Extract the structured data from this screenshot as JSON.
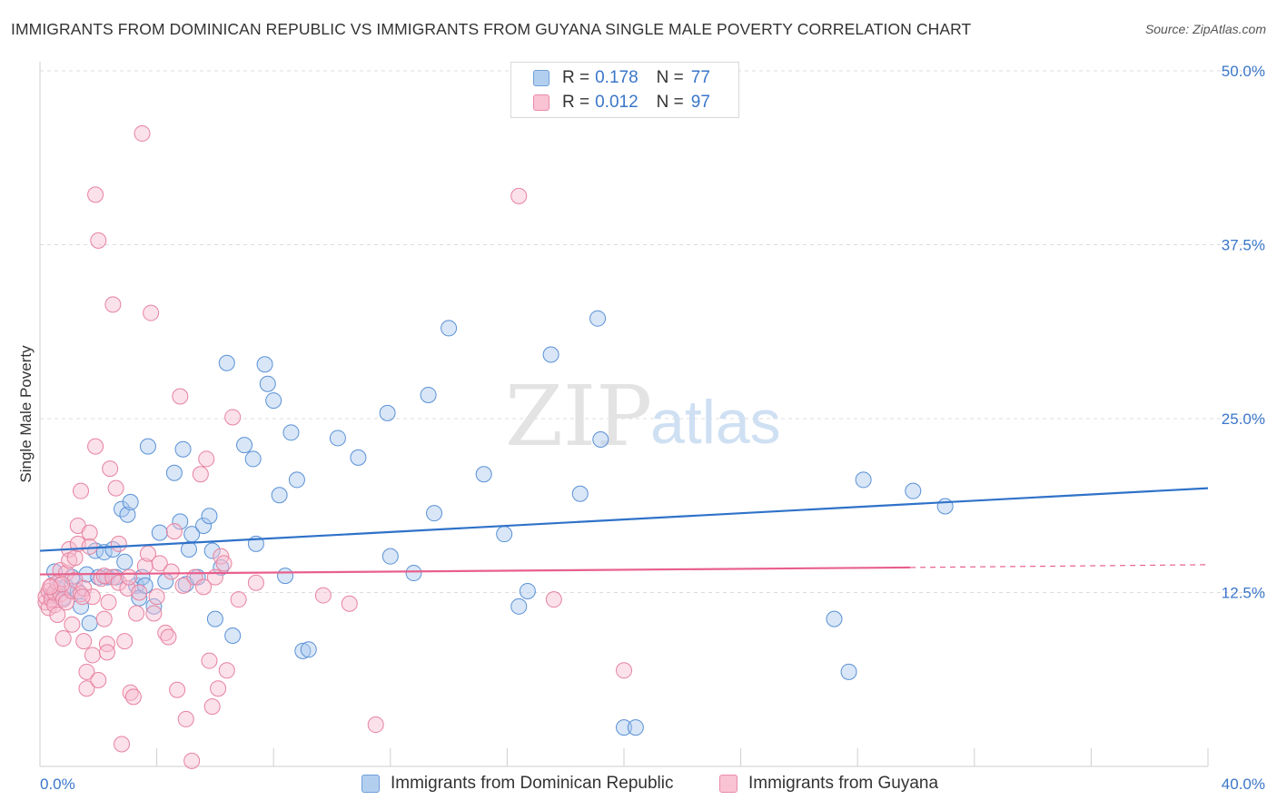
{
  "title": "IMMIGRANTS FROM DOMINICAN REPUBLIC VS IMMIGRANTS FROM GUYANA SINGLE MALE POVERTY CORRELATION CHART",
  "source": "Source: ZipAtlas.com",
  "watermark": {
    "zip": "ZIP",
    "atlas": "atlas"
  },
  "legend": {
    "series1": {
      "r_label": "R =",
      "r_value": "0.178",
      "n_label": "N =",
      "n_value": "77"
    },
    "series2": {
      "r_label": "R =",
      "r_value": "0.012",
      "n_label": "N =",
      "n_value": "97"
    }
  },
  "chart_data": {
    "type": "scatter",
    "ylabel": "Single Male Poverty",
    "xlim": [
      0,
      40
    ],
    "ylim": [
      0,
      50
    ],
    "x_tick_labels": [
      "0.0%",
      "40.0%"
    ],
    "y_tick_labels": [
      "12.5%",
      "25.0%",
      "37.5%",
      "50.0%"
    ],
    "y_ticks": [
      12.5,
      25,
      37.5,
      50
    ],
    "grid": true,
    "legend_position": "top-center",
    "colors": {
      "blue_fill": "#a8c8ee",
      "blue_stroke": "#5a91d6",
      "blue_line": "#2f72c9",
      "pink_fill": "#f7bdd0",
      "pink_stroke": "#e7829f",
      "pink_line": "#e8608c"
    },
    "series": [
      {
        "name": "Immigrants from Dominican Republic",
        "color": "blue",
        "trend": {
          "x": [
            0,
            40
          ],
          "y": [
            15.5,
            20.0
          ]
        },
        "points": [
          [
            0.4,
            12.3
          ],
          [
            0.5,
            14.0
          ],
          [
            0.6,
            12.8
          ],
          [
            0.8,
            12.1
          ],
          [
            0.9,
            12.9
          ],
          [
            1.1,
            13.6
          ],
          [
            1.3,
            12.6
          ],
          [
            1.4,
            11.5
          ],
          [
            1.6,
            13.8
          ],
          [
            1.7,
            10.3
          ],
          [
            1.9,
            15.5
          ],
          [
            2.0,
            13.6
          ],
          [
            2.2,
            15.4
          ],
          [
            2.3,
            13.6
          ],
          [
            2.5,
            15.6
          ],
          [
            2.6,
            13.6
          ],
          [
            2.8,
            18.5
          ],
          [
            2.9,
            14.7
          ],
          [
            3.0,
            18.1
          ],
          [
            3.1,
            19.0
          ],
          [
            3.3,
            13.0
          ],
          [
            3.4,
            12.1
          ],
          [
            3.5,
            13.6
          ],
          [
            3.6,
            13.0
          ],
          [
            3.7,
            23.0
          ],
          [
            3.9,
            11.5
          ],
          [
            4.1,
            16.8
          ],
          [
            4.3,
            13.3
          ],
          [
            4.6,
            21.1
          ],
          [
            4.8,
            17.6
          ],
          [
            4.9,
            22.8
          ],
          [
            5.0,
            13.1
          ],
          [
            5.1,
            15.6
          ],
          [
            5.2,
            16.7
          ],
          [
            5.4,
            13.6
          ],
          [
            5.6,
            17.3
          ],
          [
            5.8,
            18.0
          ],
          [
            5.9,
            15.5
          ],
          [
            6.0,
            10.6
          ],
          [
            6.2,
            14.3
          ],
          [
            6.4,
            29.0
          ],
          [
            6.6,
            9.4
          ],
          [
            7.0,
            23.1
          ],
          [
            7.3,
            22.1
          ],
          [
            7.4,
            16.0
          ],
          [
            7.7,
            28.9
          ],
          [
            7.8,
            27.5
          ],
          [
            8.0,
            26.3
          ],
          [
            8.2,
            19.5
          ],
          [
            8.4,
            13.7
          ],
          [
            8.6,
            24.0
          ],
          [
            8.8,
            20.6
          ],
          [
            9.0,
            8.3
          ],
          [
            9.2,
            8.4
          ],
          [
            10.2,
            23.6
          ],
          [
            10.9,
            22.2
          ],
          [
            11.9,
            25.4
          ],
          [
            12.0,
            15.1
          ],
          [
            12.8,
            13.9
          ],
          [
            13.3,
            26.7
          ],
          [
            13.5,
            18.2
          ],
          [
            14.0,
            31.5
          ],
          [
            15.2,
            21.0
          ],
          [
            15.9,
            16.7
          ],
          [
            16.4,
            11.5
          ],
          [
            16.7,
            12.6
          ],
          [
            17.5,
            29.6
          ],
          [
            18.5,
            19.6
          ],
          [
            19.1,
            32.2
          ],
          [
            19.2,
            23.5
          ],
          [
            20.0,
            2.8
          ],
          [
            20.4,
            2.8
          ],
          [
            27.2,
            10.6
          ],
          [
            27.7,
            6.8
          ],
          [
            28.2,
            20.6
          ],
          [
            29.9,
            19.8
          ],
          [
            31.0,
            18.7
          ]
        ]
      },
      {
        "name": "Immigrants from Guyana",
        "color": "pink",
        "trend": {
          "x": [
            0,
            29.8
          ],
          "y": [
            13.8,
            14.3
          ],
          "dashed_to": [
            40,
            14.5
          ]
        },
        "points": [
          [
            0.2,
            11.8
          ],
          [
            0.2,
            12.2
          ],
          [
            0.3,
            12.6
          ],
          [
            0.3,
            11.4
          ],
          [
            0.4,
            12.0
          ],
          [
            0.4,
            13.0
          ],
          [
            0.5,
            11.6
          ],
          [
            0.5,
            12.5
          ],
          [
            0.6,
            13.2
          ],
          [
            0.6,
            10.9
          ],
          [
            0.7,
            12.4
          ],
          [
            0.7,
            14.1
          ],
          [
            0.8,
            9.2
          ],
          [
            0.8,
            12.0
          ],
          [
            0.9,
            11.8
          ],
          [
            0.9,
            13.9
          ],
          [
            1.0,
            15.6
          ],
          [
            1.0,
            14.8
          ],
          [
            1.1,
            12.6
          ],
          [
            1.1,
            10.2
          ],
          [
            1.2,
            15.0
          ],
          [
            1.2,
            13.4
          ],
          [
            1.3,
            17.3
          ],
          [
            1.3,
            16.0
          ],
          [
            1.4,
            19.8
          ],
          [
            1.4,
            12.4
          ],
          [
            1.5,
            12.8
          ],
          [
            1.5,
            9.0
          ],
          [
            1.6,
            5.6
          ],
          [
            1.6,
            6.8
          ],
          [
            1.7,
            16.8
          ],
          [
            1.7,
            15.8
          ],
          [
            1.8,
            8.0
          ],
          [
            1.8,
            12.2
          ],
          [
            1.9,
            23.0
          ],
          [
            1.9,
            41.1
          ],
          [
            2.0,
            37.8
          ],
          [
            2.0,
            6.2
          ],
          [
            2.1,
            13.5
          ],
          [
            2.2,
            13.7
          ],
          [
            2.2,
            10.6
          ],
          [
            2.3,
            8.8
          ],
          [
            2.3,
            8.2
          ],
          [
            2.4,
            21.4
          ],
          [
            2.5,
            33.2
          ],
          [
            2.5,
            13.6
          ],
          [
            2.6,
            20.0
          ],
          [
            2.7,
            16.0
          ],
          [
            2.7,
            13.2
          ],
          [
            2.8,
            1.6
          ],
          [
            2.9,
            9.0
          ],
          [
            3.0,
            12.8
          ],
          [
            3.1,
            5.3
          ],
          [
            3.2,
            5.0
          ],
          [
            3.3,
            11.0
          ],
          [
            3.4,
            12.5
          ],
          [
            3.5,
            45.5
          ],
          [
            3.6,
            14.4
          ],
          [
            3.7,
            15.3
          ],
          [
            3.8,
            32.6
          ],
          [
            3.9,
            11.0
          ],
          [
            4.0,
            12.2
          ],
          [
            4.1,
            14.6
          ],
          [
            4.3,
            9.6
          ],
          [
            4.4,
            9.3
          ],
          [
            4.5,
            14.0
          ],
          [
            4.6,
            16.9
          ],
          [
            4.7,
            5.5
          ],
          [
            4.8,
            26.6
          ],
          [
            4.9,
            13.0
          ],
          [
            5.0,
            3.4
          ],
          [
            5.2,
            0.4
          ],
          [
            5.3,
            13.6
          ],
          [
            5.5,
            21.0
          ],
          [
            5.6,
            12.9
          ],
          [
            5.7,
            22.1
          ],
          [
            5.8,
            7.6
          ],
          [
            5.9,
            4.3
          ],
          [
            6.0,
            13.6
          ],
          [
            6.1,
            5.6
          ],
          [
            6.2,
            15.1
          ],
          [
            6.3,
            14.6
          ],
          [
            6.4,
            6.9
          ],
          [
            6.6,
            25.1
          ],
          [
            6.8,
            12.0
          ],
          [
            7.4,
            13.2
          ],
          [
            9.7,
            12.3
          ],
          [
            10.6,
            11.7
          ],
          [
            11.5,
            3.0
          ],
          [
            16.4,
            41.0
          ],
          [
            17.6,
            12.0
          ],
          [
            20.0,
            6.9
          ],
          [
            3.05,
            13.6
          ],
          [
            2.35,
            11.8
          ],
          [
            1.45,
            12.2
          ],
          [
            0.75,
            13.1
          ],
          [
            0.35,
            12.9
          ]
        ]
      }
    ]
  },
  "bottom_legend": {
    "item1": "Immigrants from Dominican Republic",
    "item2": "Immigrants from Guyana"
  }
}
